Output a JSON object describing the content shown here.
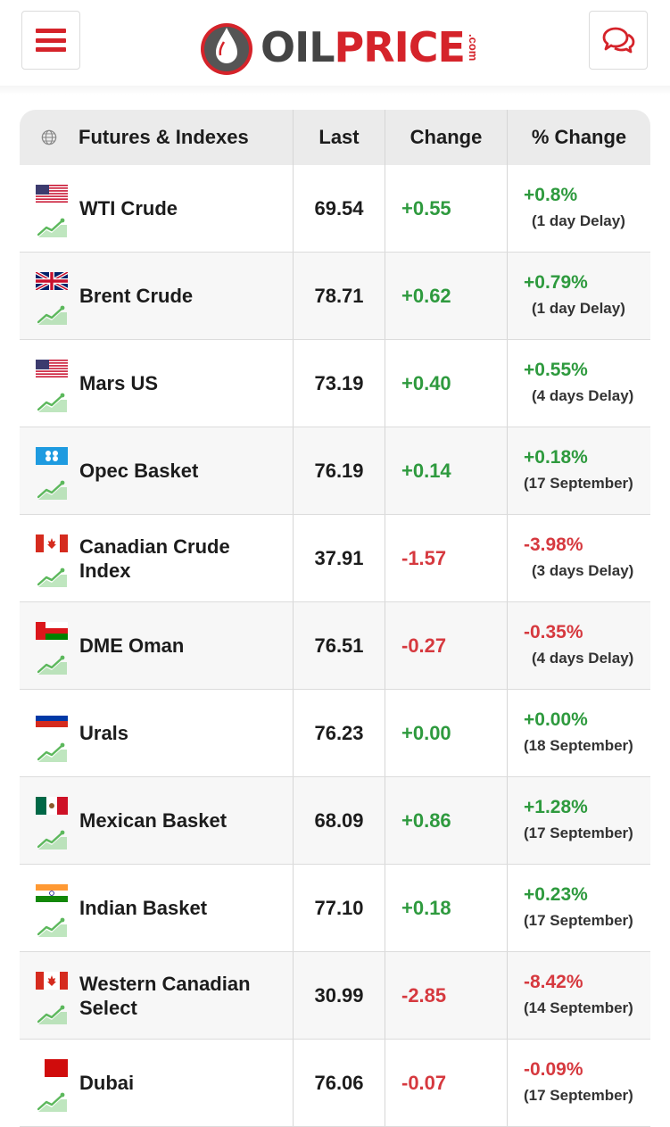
{
  "header": {
    "logo_oil": "OIL",
    "logo_price": "PRICE",
    "logo_com": ".com",
    "menu_icon": "hamburger-icon",
    "chat_icon": "chat-bubbles-icon"
  },
  "table": {
    "headers": {
      "name": "Futures & Indexes",
      "last": "Last",
      "change": "Change",
      "pct": "% Change"
    },
    "rows": [
      {
        "flag": "us",
        "name": "WTI Crude",
        "last": "69.54",
        "change": "+0.55",
        "pct": "+0.8%",
        "delay": "(1 day Delay)",
        "dir": "pos",
        "indent": true
      },
      {
        "flag": "uk",
        "name": "Brent Crude",
        "last": "78.71",
        "change": "+0.62",
        "pct": "+0.79%",
        "delay": "(1 day Delay)",
        "dir": "pos",
        "indent": true
      },
      {
        "flag": "us",
        "name": "Mars US",
        "last": "73.19",
        "change": "+0.40",
        "pct": "+0.55%",
        "delay": "(4 days Delay)",
        "dir": "pos",
        "indent": true
      },
      {
        "flag": "opec",
        "name": "Opec Basket",
        "last": "76.19",
        "change": "+0.14",
        "pct": "+0.18%",
        "delay": "(17 September)",
        "dir": "pos",
        "indent": false
      },
      {
        "flag": "ca",
        "name": "Canadian Crude Index",
        "last": "37.91",
        "change": "-1.57",
        "pct": "-3.98%",
        "delay": "(3 days Delay)",
        "dir": "neg",
        "indent": true
      },
      {
        "flag": "om",
        "name": "DME Oman",
        "last": "76.51",
        "change": "-0.27",
        "pct": "-0.35%",
        "delay": "(4 days Delay)",
        "dir": "neg",
        "indent": true
      },
      {
        "flag": "ru",
        "name": "Urals",
        "last": "76.23",
        "change": "+0.00",
        "pct": "+0.00%",
        "delay": "(18 September)",
        "dir": "pos",
        "indent": false
      },
      {
        "flag": "mx",
        "name": "Mexican Basket",
        "last": "68.09",
        "change": "+0.86",
        "pct": "+1.28%",
        "delay": "(17 September)",
        "dir": "pos",
        "indent": false
      },
      {
        "flag": "in",
        "name": "Indian Basket",
        "last": "77.10",
        "change": "+0.18",
        "pct": "+0.23%",
        "delay": "(17 September)",
        "dir": "pos",
        "indent": false
      },
      {
        "flag": "ca",
        "name": "Western Canadian Select",
        "last": "30.99",
        "change": "-2.85",
        "pct": "-8.42%",
        "delay": "(14 September)",
        "dir": "neg",
        "indent": false
      },
      {
        "flag": "dubai",
        "name": "Dubai",
        "last": "76.06",
        "change": "-0.07",
        "pct": "-0.09%",
        "delay": "(17 September)",
        "dir": "neg",
        "indent": false
      }
    ]
  },
  "colors": {
    "brand_red": "#d5232a",
    "positive": "#2e9a3e",
    "negative": "#d6393f",
    "trend_green": "#5cb85c"
  }
}
